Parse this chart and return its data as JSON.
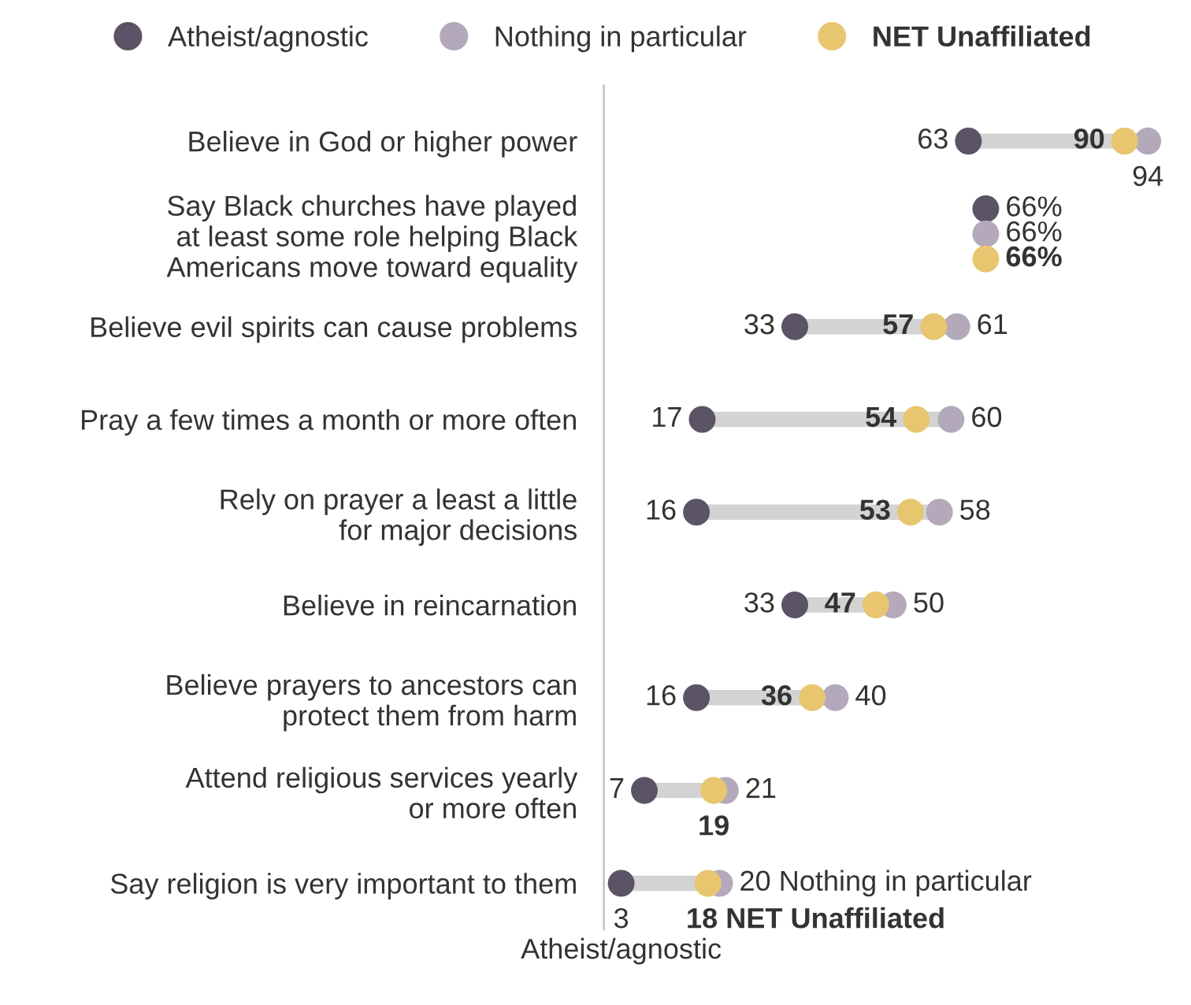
{
  "chart_data": {
    "type": "scatter",
    "orientation": "horizontal",
    "categories": [
      "Believe in God or higher power",
      "Say Black churches have played\nat least some role helping Black\nAmericans move toward equality",
      "Believe evil spirits can cause problems",
      "Pray a few times a month or more often",
      "Rely on prayer a least a little\nfor major decisions",
      "Believe in reincarnation",
      "Believe prayers to ancestors can\nprotect them from harm",
      "Attend religious services yearly\nor more often",
      "Say religion is very important to them"
    ],
    "series": [
      {
        "name": "Atheist/agnostic",
        "color": "#5b5466",
        "values": [
          63,
          66,
          33,
          17,
          16,
          33,
          16,
          7,
          3
        ],
        "value_labels": [
          "63",
          "66%",
          "33",
          "17",
          "16",
          "33",
          "16",
          "7",
          "3\nAtheist/agnostic"
        ]
      },
      {
        "name": "Nothing in particular",
        "color": "#b3a9bb",
        "values": [
          94,
          66,
          61,
          60,
          58,
          50,
          40,
          21,
          20
        ],
        "value_labels": [
          "94",
          "66%",
          "61",
          "60",
          "58",
          "50",
          "40",
          "21",
          "20 Nothing in particular"
        ]
      },
      {
        "name": "NET Unaffiliated",
        "color": "#e8c66f",
        "values": [
          90,
          66,
          57,
          54,
          53,
          47,
          36,
          19,
          18
        ],
        "value_labels": [
          "90",
          "66%",
          "57",
          "54",
          "53",
          "47",
          "36",
          "19",
          "18 NET Unaffiliated"
        ]
      }
    ],
    "tick_labels": "y",
    "marker": "circle",
    "legend": "top",
    "grid": false
  }
}
